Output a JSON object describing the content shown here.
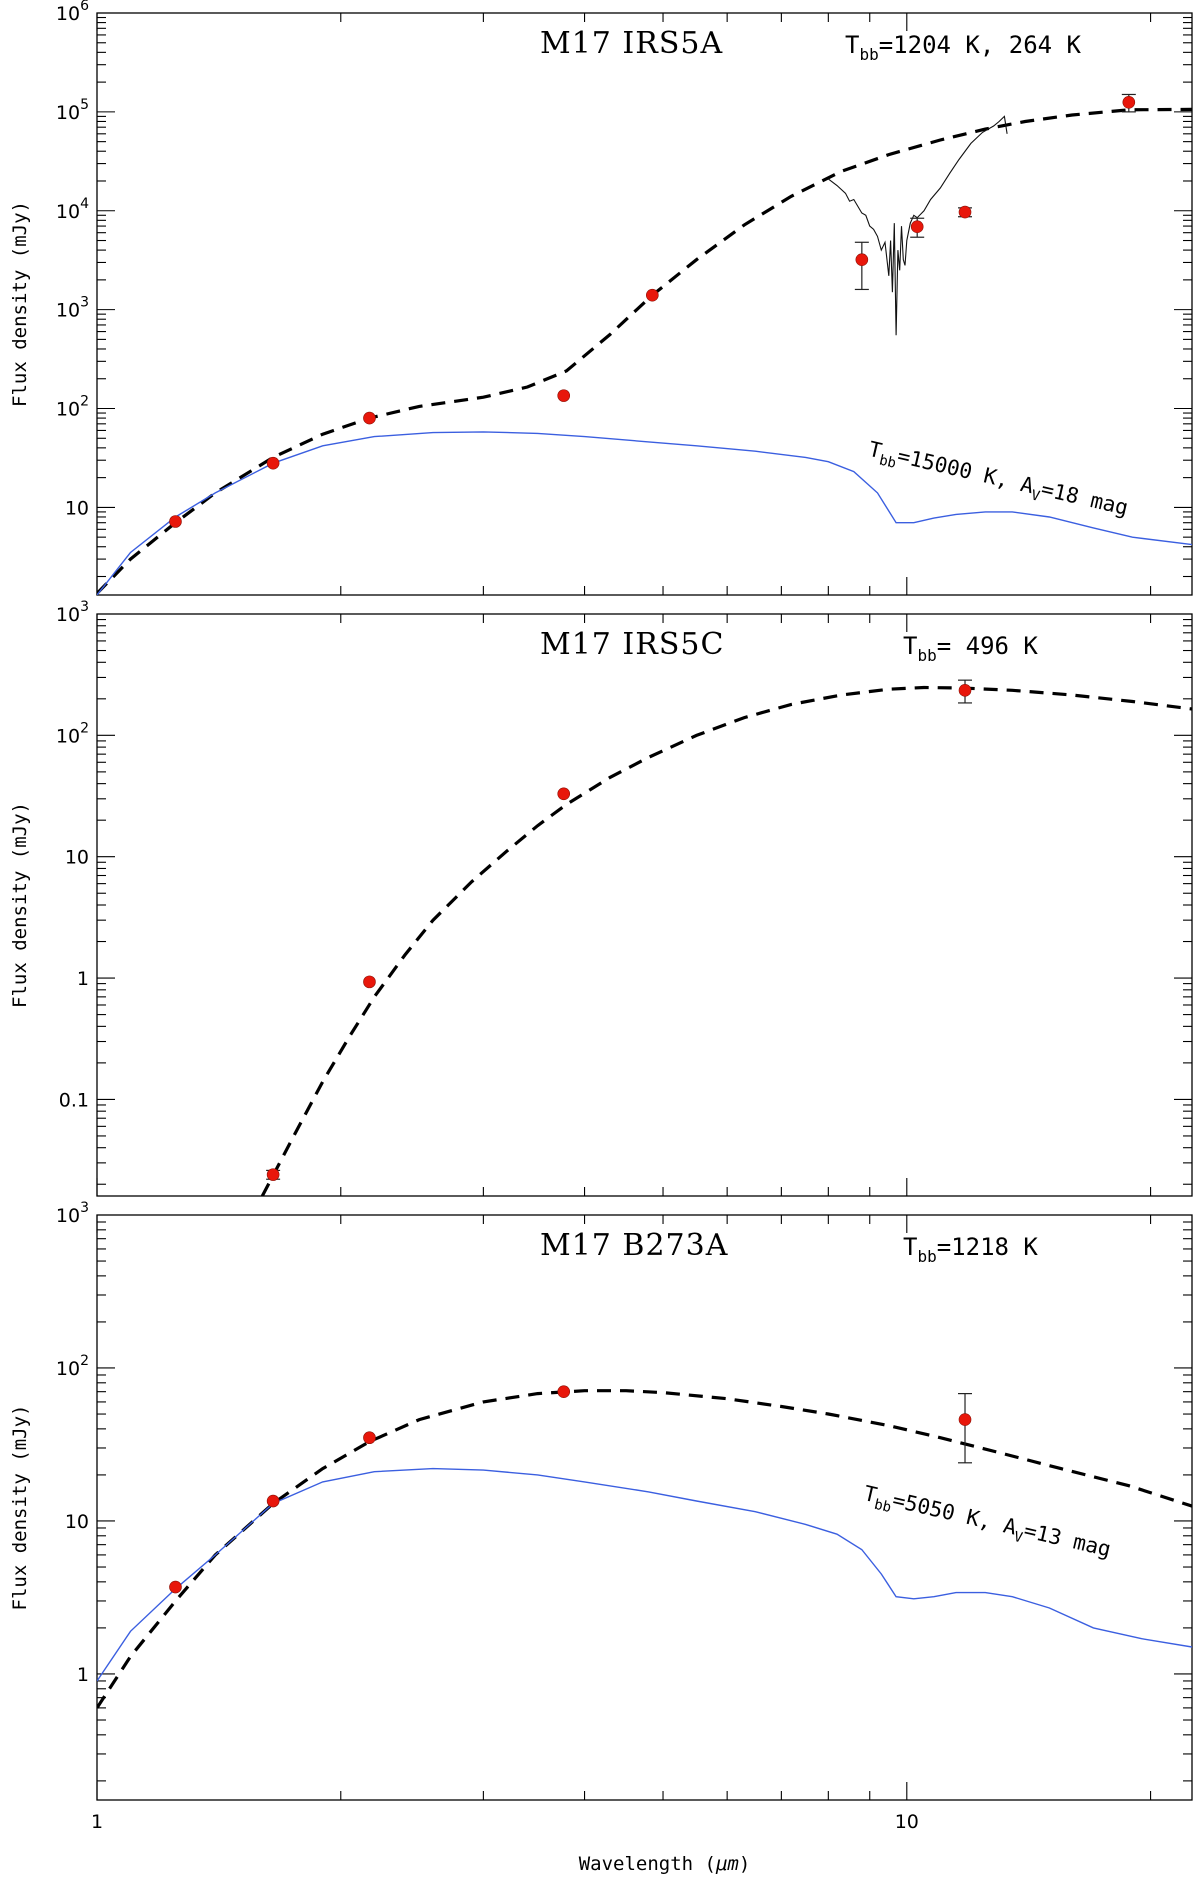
{
  "figure": {
    "x_label_text": "Wavelength (",
    "x_label_unit": "μm",
    "x_label_close": ")",
    "y_label": "Flux density (mJy)"
  },
  "chart_data": [
    {
      "type": "scatter",
      "title": "M17 IRS5A",
      "tbb_label": "=1204 K, 264 K",
      "xscale": "log",
      "yscale": "log",
      "xlim": [
        1,
        22.5
      ],
      "ylim": [
        1.3,
        1000000
      ],
      "ylabel": "Flux density (mJy)",
      "y_ticks": [
        {
          "v": 10,
          "base": "10",
          "exp": ""
        },
        {
          "v": 100,
          "base": "10",
          "exp": "2"
        },
        {
          "v": 1000,
          "base": "10",
          "exp": "3"
        },
        {
          "v": 10000,
          "base": "10",
          "exp": "4"
        },
        {
          "v": 100000,
          "base": "10",
          "exp": "5"
        },
        {
          "v": 1000000,
          "base": "10",
          "exp": "6"
        }
      ],
      "annotation": {
        "prefix": "T",
        "sub1": "bb",
        "mid": "=15000 K, A",
        "sub2": "V",
        "suffix": "=18 mag",
        "x": 3.6,
        "y": 10,
        "angle": 13
      },
      "series": [
        {
          "name": "photometry",
          "kind": "points",
          "x": [
            1.25,
            1.65,
            2.17,
            3.77,
            4.85,
            8.8,
            10.3,
            11.8,
            18.8
          ],
          "y": [
            7.2,
            28,
            80,
            135,
            1400,
            3200,
            6900,
            9700,
            125000
          ],
          "err": [
            0,
            0,
            0,
            0,
            0,
            1600,
            1500,
            1000,
            25000
          ]
        },
        {
          "name": "blackbody fit",
          "kind": "dashed",
          "x": [
            1,
            1.1,
            1.25,
            1.4,
            1.65,
            1.9,
            2.17,
            2.5,
            3.0,
            3.4,
            3.8,
            4.3,
            4.85,
            5.5,
            6.3,
            7.2,
            8.3,
            9.5,
            11,
            12.5,
            14,
            16,
            18.8,
            22.5
          ],
          "y": [
            1.35,
            3,
            7,
            14,
            32,
            55,
            80,
            105,
            130,
            165,
            240,
            560,
            1400,
            3200,
            7200,
            14000,
            25000,
            37000,
            52000,
            67000,
            80000,
            93000,
            105000,
            106000
          ]
        },
        {
          "name": "spectrum",
          "kind": "line",
          "x": [
            8.0,
            8.2,
            8.4,
            8.5,
            8.6,
            8.8,
            8.9,
            9.0,
            9.1,
            9.2,
            9.3,
            9.4,
            9.5,
            9.55,
            9.6,
            9.65,
            9.7,
            9.75,
            9.8,
            9.85,
            9.9,
            9.95,
            10.0,
            10.1,
            10.2,
            10.3,
            10.5,
            10.7,
            11.0,
            11.3,
            11.6,
            12.0,
            12.4,
            12.8,
            13.0,
            13.2,
            13.3
          ],
          "y": [
            21000,
            18000,
            15000,
            12500,
            13000,
            9500,
            9000,
            7000,
            6500,
            5500,
            4000,
            4800,
            2200,
            5000,
            1500,
            7500,
            550,
            4000,
            2500,
            7000,
            3200,
            2800,
            5000,
            7500,
            9000,
            8500,
            10000,
            13000,
            17000,
            24000,
            33000,
            48000,
            62000,
            72000,
            80000,
            90000,
            60000
          ]
        },
        {
          "name": "stellar model",
          "kind": "model",
          "x": [
            1,
            1.1,
            1.25,
            1.4,
            1.65,
            1.9,
            2.2,
            2.6,
            3.0,
            3.5,
            4.0,
            4.8,
            5.5,
            6.5,
            7.5,
            8.0,
            8.6,
            9.2,
            9.7,
            10.2,
            10.8,
            11.5,
            12.5,
            13.5,
            15,
            17,
            19,
            22.5
          ],
          "y": [
            1.3,
            3.5,
            8,
            14,
            28,
            42,
            52,
            57,
            58,
            56,
            52,
            46,
            42,
            37,
            32,
            29,
            23,
            14,
            7,
            7,
            7.8,
            8.5,
            9,
            9,
            8,
            6.2,
            5,
            4.2
          ]
        }
      ]
    },
    {
      "type": "scatter",
      "title": "M17 IRS5C",
      "tbb_label": "= 496 K",
      "xscale": "log",
      "yscale": "log",
      "xlim": [
        1,
        22.5
      ],
      "ylim": [
        0.016,
        1000
      ],
      "ylabel": "Flux density (mJy)",
      "y_ticks": [
        {
          "v": 0.1,
          "base": "0.1",
          "exp": ""
        },
        {
          "v": 1,
          "base": "1",
          "exp": ""
        },
        {
          "v": 10,
          "base": "10",
          "exp": ""
        },
        {
          "v": 100,
          "base": "10",
          "exp": "2"
        },
        {
          "v": 1000,
          "base": "10",
          "exp": "3"
        }
      ],
      "series": [
        {
          "name": "photometry",
          "kind": "points",
          "x": [
            1.65,
            2.17,
            3.77,
            11.8
          ],
          "y": [
            0.024,
            0.93,
            33,
            235
          ],
          "err": [
            0.002,
            0,
            0,
            50
          ]
        },
        {
          "name": "blackbody fit",
          "kind": "dashed",
          "x": [
            1.6,
            1.75,
            1.9,
            2.05,
            2.2,
            2.4,
            2.6,
            2.9,
            3.2,
            3.5,
            3.8,
            4.3,
            4.8,
            5.5,
            6.3,
            7.2,
            8.3,
            9.5,
            10.5,
            11.8,
            13.5,
            16,
            19,
            22.5
          ],
          "y": [
            0.016,
            0.05,
            0.14,
            0.33,
            0.7,
            1.55,
            3.0,
            6.2,
            11,
            18,
            27,
            45,
            66,
            100,
            140,
            180,
            215,
            240,
            248,
            245,
            235,
            215,
            190,
            165
          ]
        }
      ]
    },
    {
      "type": "scatter",
      "title": "M17 B273A",
      "tbb_label": "=1218 K",
      "xscale": "log",
      "yscale": "log",
      "xlim": [
        1,
        22.5
      ],
      "ylim": [
        0.15,
        1000
      ],
      "ylabel": "Flux density (mJy)",
      "xlabel": "Wavelength (μm)",
      "y_ticks": [
        {
          "v": 1,
          "base": "1",
          "exp": ""
        },
        {
          "v": 10,
          "base": "10",
          "exp": ""
        },
        {
          "v": 100,
          "base": "10",
          "exp": "2"
        },
        {
          "v": 1000,
          "base": "10",
          "exp": "3"
        }
      ],
      "x_ticks": [
        {
          "v": 1,
          "label": "1"
        },
        {
          "v": 10,
          "label": "10"
        }
      ],
      "annotation": {
        "prefix": "T",
        "sub1": "bb",
        "mid": "=5050 K, A",
        "sub2": "V",
        "suffix": "=13 mag",
        "x": 3.55,
        "y": 6.3,
        "angle": 13
      },
      "series": [
        {
          "name": "photometry",
          "kind": "points",
          "x": [
            1.25,
            1.65,
            2.17,
            3.77,
            11.8
          ],
          "y": [
            3.7,
            13.5,
            35,
            70,
            46
          ],
          "err": [
            0,
            0,
            0,
            0,
            22
          ]
        },
        {
          "name": "blackbody fit",
          "kind": "dashed",
          "x": [
            1,
            1.1,
            1.25,
            1.4,
            1.65,
            1.9,
            2.17,
            2.5,
            3.0,
            3.5,
            4.0,
            4.5,
            5.0,
            6.0,
            7.0,
            8.0,
            9.5,
            11,
            13,
            15.5,
            18.8,
            22.5
          ],
          "y": [
            0.6,
            1.3,
            3.0,
            6,
            13,
            22,
            33,
            46,
            60,
            68,
            71,
            71,
            69,
            63,
            56,
            50,
            42,
            35,
            28,
            22,
            17,
            12.5
          ]
        },
        {
          "name": "stellar model",
          "kind": "model",
          "x": [
            1,
            1.1,
            1.25,
            1.4,
            1.65,
            1.9,
            2.2,
            2.6,
            3.0,
            3.5,
            4.0,
            4.8,
            5.5,
            6.5,
            7.5,
            8.2,
            8.8,
            9.3,
            9.7,
            10.2,
            10.8,
            11.5,
            12.5,
            13.5,
            15,
            17,
            19.5,
            22.5
          ],
          "y": [
            0.9,
            1.9,
            3.6,
            6,
            13,
            18,
            21,
            22,
            21.5,
            20,
            18,
            15.5,
            13.5,
            11.5,
            9.5,
            8.2,
            6.5,
            4.5,
            3.2,
            3.1,
            3.2,
            3.4,
            3.4,
            3.2,
            2.7,
            2.0,
            1.7,
            1.5
          ]
        }
      ]
    }
  ]
}
